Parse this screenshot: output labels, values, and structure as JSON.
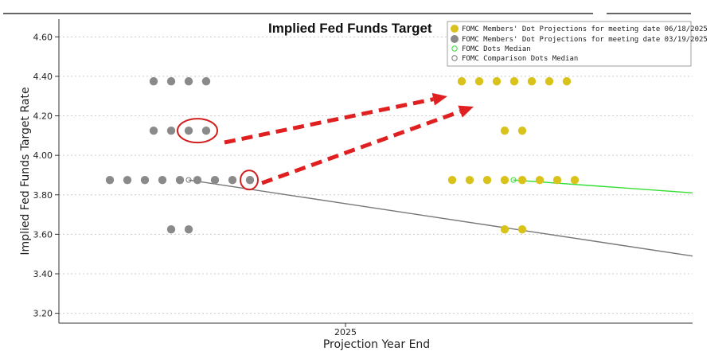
{
  "colors": {
    "current_dots": "#d9c21a",
    "previous_dots": "#8a8a8a",
    "current_median": "#33dd33",
    "comparison_median": "#777777",
    "arrow": "#e02020",
    "highlight": "#d02020",
    "grid": "#cccccc"
  },
  "chart_data": {
    "type": "scatter",
    "title": "Implied Fed Funds Target",
    "xlabel": "Projection Year End",
    "ylabel": "Implied Fed Funds Target Rate",
    "ylim": [
      3.15,
      4.69
    ],
    "x_ticks": [
      "2025"
    ],
    "y_ticks": [
      "4.60",
      "4.40",
      "4.20",
      "4.00",
      "3.80",
      "3.60",
      "3.40",
      "3.20"
    ],
    "grid": true,
    "legend_position": "top-right",
    "legend": [
      "FOMC Members' Dot Projections for meeting date 06/18/2025",
      "FOMC Members' Dot Projections for meeting date 03/19/2025",
      "FOMC Dots Median",
      "FOMC Comparison Dots Median"
    ],
    "series": [
      {
        "name": "FOMC Members' Dot Projections for meeting date 03/19/2025",
        "points": [
          {
            "y": 4.375,
            "count": 4
          },
          {
            "y": 4.125,
            "count": 4
          },
          {
            "y": 3.875,
            "count": 9
          },
          {
            "y": 3.625,
            "count": 2
          }
        ]
      },
      {
        "name": "FOMC Members' Dot Projections for meeting date 06/18/2025",
        "points": [
          {
            "y": 4.375,
            "count": 7
          },
          {
            "y": 4.125,
            "count": 2
          },
          {
            "y": 3.875,
            "count": 8
          },
          {
            "y": 3.625,
            "count": 2
          }
        ]
      },
      {
        "name": "FOMC Dots Median",
        "values": [
          3.875,
          3.81
        ]
      },
      {
        "name": "FOMC Comparison Dots Median",
        "values": [
          3.875,
          3.49
        ]
      }
    ],
    "annotations": [
      {
        "type": "circle",
        "target": "03/19/2025 dots at 4.125 (last two)"
      },
      {
        "type": "circle",
        "target": "03/19/2025 dot at 3.875 (last)"
      },
      {
        "type": "arrow",
        "from": "circled 4.125 dots",
        "to": "06/18/2025 dots at 4.375"
      },
      {
        "type": "arrow",
        "from": "circled 3.875 dot",
        "to": "06/18/2025 dots at 4.375"
      }
    ]
  }
}
